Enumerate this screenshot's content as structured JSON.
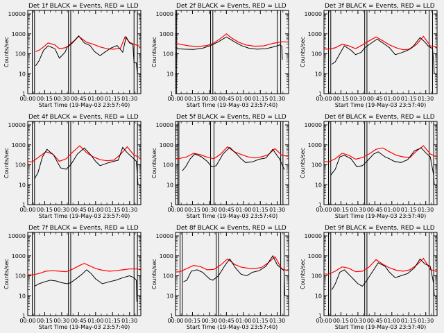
{
  "figure": {
    "xtick_labels": [
      "00:00",
      "00:15",
      "00:30",
      "00:45",
      "01:00",
      "01:15",
      "01:30"
    ],
    "ytick_labels": [
      "1",
      "10",
      "100",
      "1000",
      "10000"
    ],
    "xlabel": "Start Time (19-May-03 23:57:40)",
    "ylabel": "Counts/sec",
    "colors": {
      "events": "#000000",
      "lld": "#ff0000",
      "background": "#f0f0f0"
    }
  },
  "chart_data": [
    {
      "type": "line",
      "title": "Det 1f BLACK = Events, RED = LLD",
      "xlabel": "Start Time (19-May-03 23:57:40)",
      "ylabel": "Counts/sec",
      "yscale": "log",
      "xlim": [
        0,
        100
      ],
      "ylim": [
        1,
        15000
      ],
      "x_unit": "minutes after 23:57:40",
      "vlines": [
        4,
        6,
        36,
        38,
        94,
        97
      ],
      "series": [
        {
          "name": "Events",
          "color": "#000000",
          "x": [
            7,
            10,
            14,
            18,
            24,
            28,
            33,
            35,
            41,
            45,
            50,
            55,
            59,
            64,
            68,
            74,
            79,
            84,
            87,
            90,
            93,
            94,
            96,
            97,
            98
          ],
          "y": [
            25,
            45,
            150,
            250,
            180,
            60,
            120,
            220,
            450,
            800,
            350,
            260,
            130,
            80,
            120,
            200,
            260,
            120,
            700,
            350,
            290,
            35,
            35,
            10,
            10
          ]
        },
        {
          "name": "LLD",
          "color": "#ff0000",
          "x": [
            7,
            10,
            14,
            18,
            24,
            28,
            33,
            38,
            45,
            52,
            58,
            64,
            70,
            76,
            82,
            86,
            90,
            94,
            98,
            103
          ],
          "y": [
            130,
            150,
            220,
            350,
            280,
            180,
            200,
            280,
            750,
            380,
            300,
            220,
            180,
            170,
            190,
            700,
            380,
            300,
            250,
            200
          ]
        }
      ]
    },
    {
      "type": "line",
      "title": "Det 2f BLACK = Events, RED = LLD",
      "xlabel": "Start Time (19-May-03 23:57:40)",
      "ylabel": "Counts/sec",
      "yscale": "log",
      "xlim": [
        0,
        100
      ],
      "ylim": [
        1,
        15000
      ],
      "x_unit": "minutes after 23:57:40",
      "vlines": [
        -1,
        1,
        31,
        33,
        90,
        93
      ],
      "series": [
        {
          "name": "Events",
          "color": "#000000",
          "x": [
            1,
            8,
            16,
            24,
            31,
            38,
            45,
            52,
            58,
            65,
            72,
            80,
            89,
            92,
            94,
            94.5
          ],
          "y": [
            180,
            170,
            165,
            190,
            260,
            400,
            700,
            400,
            260,
            190,
            170,
            180,
            240,
            280,
            240,
            50
          ]
        },
        {
          "name": "LLD",
          "color": "#ff0000",
          "x": [
            -4,
            4,
            12,
            20,
            28,
            34,
            40,
            45,
            50,
            56,
            62,
            70,
            78,
            86,
            94,
            103
          ],
          "y": [
            380,
            300,
            250,
            230,
            260,
            350,
            600,
            1000,
            600,
            380,
            280,
            240,
            250,
            330,
            400,
            380
          ]
        }
      ]
    },
    {
      "type": "line",
      "title": "Det 3f BLACK = Events, RED = LLD",
      "xlabel": "Start Time (19-May-03 23:57:40)",
      "ylabel": "Counts/sec",
      "yscale": "log",
      "xlim": [
        0,
        100
      ],
      "ylim": [
        1,
        15000
      ],
      "x_unit": "minutes after 23:57:40",
      "vlines": [
        4,
        6,
        36,
        38,
        93,
        96
      ],
      "series": [
        {
          "name": "Events",
          "color": "#000000",
          "x": [
            7,
            10,
            14,
            18,
            24,
            28,
            33,
            36,
            42,
            47,
            52,
            58,
            63,
            68,
            74,
            79,
            85,
            89,
            92,
            96,
            97,
            97.5
          ],
          "y": [
            30,
            40,
            100,
            250,
            150,
            90,
            120,
            200,
            350,
            550,
            350,
            200,
            90,
            110,
            150,
            240,
            650,
            400,
            250,
            180,
            35,
            10
          ]
        },
        {
          "name": "LLD",
          "color": "#ff0000",
          "x": [
            -4,
            4,
            10,
            16,
            22,
            28,
            34,
            40,
            46,
            52,
            58,
            64,
            70,
            76,
            82,
            88,
            94,
            103
          ],
          "y": [
            180,
            170,
            200,
            300,
            250,
            180,
            280,
            450,
            700,
            450,
            280,
            200,
            160,
            170,
            300,
            750,
            250,
            200
          ]
        }
      ]
    },
    {
      "type": "line",
      "title": "Det 4f BLACK = Events, RED = LLD",
      "xlabel": "Start Time (19-May-03 23:57:40)",
      "ylabel": "Counts/sec",
      "yscale": "log",
      "xlim": [
        0,
        100
      ],
      "ylim": [
        1,
        15000
      ],
      "x_unit": "minutes after 23:57:40",
      "vlines": [
        4,
        6,
        36,
        38,
        94,
        97
      ],
      "series": [
        {
          "name": "Events",
          "color": "#000000",
          "x": [
            6,
            9,
            13,
            17,
            23,
            29,
            34,
            38,
            44,
            50,
            56,
            60,
            64,
            70,
            76,
            80,
            84,
            88,
            92,
            96,
            97,
            97.5
          ],
          "y": [
            20,
            40,
            250,
            600,
            300,
            70,
            60,
            100,
            350,
            700,
            300,
            150,
            90,
            120,
            150,
            170,
            750,
            400,
            250,
            150,
            30,
            10
          ]
        },
        {
          "name": "LLD",
          "color": "#ff0000",
          "x": [
            -4,
            4,
            10,
            16,
            22,
            28,
            34,
            40,
            46,
            52,
            58,
            64,
            70,
            76,
            82,
            88,
            94,
            103
          ],
          "y": [
            150,
            140,
            250,
            450,
            350,
            150,
            200,
            450,
            900,
            400,
            250,
            180,
            160,
            170,
            330,
            800,
            300,
            200
          ]
        }
      ]
    },
    {
      "type": "line",
      "title": "Det 5f BLACK = Events, RED = LLD",
      "xlabel": "Start Time (19-May-03 23:57:40)",
      "ylabel": "Counts/sec",
      "yscale": "log",
      "xlim": [
        0,
        100
      ],
      "ylim": [
        1,
        15000
      ],
      "x_unit": "minutes after 23:57:40",
      "vlines": [
        2,
        3,
        31,
        34,
        93,
        95
      ],
      "series": [
        {
          "name": "Events",
          "color": "#000000",
          "x": [
            6,
            9,
            13,
            17,
            23,
            28,
            32,
            36,
            42,
            48,
            54,
            58,
            62,
            68,
            74,
            80,
            86,
            90,
            92,
            96,
            96.5
          ],
          "y": [
            50,
            80,
            200,
            350,
            250,
            150,
            80,
            90,
            350,
            750,
            350,
            200,
            130,
            140,
            190,
            220,
            600,
            280,
            200,
            60,
            60
          ]
        },
        {
          "name": "LLD",
          "color": "#ff0000",
          "x": [
            -4,
            4,
            10,
            16,
            22,
            28,
            34,
            40,
            46,
            52,
            58,
            64,
            70,
            76,
            82,
            88,
            94,
            103
          ],
          "y": [
            200,
            210,
            250,
            380,
            320,
            240,
            200,
            350,
            800,
            450,
            330,
            250,
            220,
            250,
            320,
            650,
            300,
            250
          ]
        }
      ]
    },
    {
      "type": "line",
      "title": "Det 6f BLACK = Events, RED = LLD",
      "xlabel": "Start Time (19-May-03 23:57:40)",
      "ylabel": "Counts/sec",
      "yscale": "log",
      "xlim": [
        0,
        100
      ],
      "ylim": [
        1,
        15000
      ],
      "x_unit": "minutes after 23:57:40",
      "vlines": [
        4,
        6,
        36,
        38,
        93,
        97
      ],
      "series": [
        {
          "name": "Events",
          "color": "#000000",
          "x": [
            6,
            10,
            14,
            18,
            24,
            29,
            34,
            38,
            44,
            48,
            54,
            58,
            62,
            68,
            74,
            80,
            86,
            90,
            94,
            97,
            97.5
          ],
          "y": [
            30,
            60,
            250,
            300,
            200,
            80,
            90,
            150,
            350,
            450,
            250,
            200,
            150,
            130,
            180,
            500,
            700,
            400,
            250,
            30,
            10
          ]
        },
        {
          "name": "LLD",
          "color": "#ff0000",
          "x": [
            -4,
            4,
            10,
            16,
            22,
            28,
            34,
            40,
            46,
            52,
            58,
            64,
            70,
            76,
            82,
            88,
            94,
            103
          ],
          "y": [
            150,
            140,
            200,
            380,
            300,
            190,
            230,
            350,
            600,
            700,
            450,
            300,
            250,
            230,
            500,
            900,
            350,
            200
          ]
        }
      ]
    },
    {
      "type": "line",
      "title": "Det 7f BLACK = Events, RED = LLD",
      "xlabel": "Start Time (19-May-03 23:57:40)",
      "ylabel": "Counts/sec",
      "yscale": "log",
      "xlim": [
        0,
        100
      ],
      "ylim": [
        1,
        15000
      ],
      "x_unit": "minutes after 23:57:40",
      "vlines": [
        4,
        6,
        36,
        38,
        94,
        97
      ],
      "series": [
        {
          "name": "Events",
          "color": "#000000",
          "x": [
            6,
            10,
            15,
            20,
            25,
            30,
            35,
            38,
            44,
            48,
            52,
            56,
            60,
            66,
            72,
            78,
            84,
            90,
            94,
            96,
            96.5
          ],
          "y": [
            30,
            40,
            50,
            60,
            55,
            45,
            40,
            45,
            80,
            120,
            200,
            130,
            70,
            40,
            50,
            60,
            80,
            100,
            80,
            60,
            5
          ]
        },
        {
          "name": "LLD",
          "color": "#ff0000",
          "x": [
            -4,
            4,
            10,
            16,
            22,
            28,
            34,
            40,
            46,
            50,
            54,
            60,
            66,
            72,
            78,
            84,
            90,
            96,
            103
          ],
          "y": [
            120,
            110,
            130,
            170,
            180,
            170,
            160,
            220,
            330,
            420,
            330,
            230,
            190,
            170,
            180,
            200,
            220,
            220,
            210
          ]
        }
      ]
    },
    {
      "type": "line",
      "title": "Det 8f BLACK = Events, RED = LLD",
      "xlabel": "Start Time (19-May-03 23:57:40)",
      "ylabel": "Counts/sec",
      "yscale": "log",
      "xlim": [
        0,
        100
      ],
      "ylim": [
        1,
        15000
      ],
      "x_unit": "minutes after 23:57:40",
      "vlines": [
        4,
        6,
        36,
        38,
        93,
        96
      ],
      "series": [
        {
          "name": "Events",
          "color": "#000000",
          "x": [
            7,
            10,
            14,
            19,
            24,
            30,
            33,
            38,
            44,
            48,
            53,
            58,
            63,
            68,
            74,
            80,
            86,
            90,
            93,
            96,
            96.5
          ],
          "y": [
            50,
            60,
            170,
            200,
            150,
            70,
            60,
            100,
            350,
            700,
            250,
            120,
            100,
            150,
            180,
            300,
            1000,
            350,
            250,
            180,
            10
          ]
        },
        {
          "name": "LLD",
          "color": "#ff0000",
          "x": [
            -4,
            4,
            10,
            16,
            22,
            28,
            34,
            40,
            46,
            52,
            58,
            64,
            70,
            76,
            82,
            88,
            94,
            103
          ],
          "y": [
            150,
            160,
            230,
            330,
            290,
            200,
            210,
            350,
            700,
            380,
            270,
            240,
            230,
            260,
            450,
            900,
            220,
            160
          ]
        }
      ]
    },
    {
      "type": "line",
      "title": "Det 9f BLACK = Events, RED = LLD",
      "xlabel": "Start Time (19-May-03 23:57:40)",
      "ylabel": "Counts/sec",
      "yscale": "log",
      "xlim": [
        0,
        100
      ],
      "ylim": [
        1,
        15000
      ],
      "x_unit": "minutes after 23:57:40",
      "vlines": [
        4,
        6,
        36,
        38,
        93,
        97
      ],
      "series": [
        {
          "name": "Events",
          "color": "#000000",
          "x": [
            7,
            10,
            14,
            18,
            24,
            30,
            34,
            38,
            44,
            48,
            54,
            58,
            63,
            68,
            74,
            80,
            85,
            89,
            94,
            97,
            97.5
          ],
          "y": [
            20,
            40,
            150,
            200,
            90,
            40,
            30,
            60,
            200,
            450,
            300,
            150,
            80,
            100,
            130,
            250,
            700,
            400,
            300,
            40,
            10
          ]
        },
        {
          "name": "LLD",
          "color": "#ff0000",
          "x": [
            -4,
            4,
            10,
            16,
            22,
            28,
            34,
            40,
            46,
            52,
            58,
            64,
            70,
            76,
            82,
            88,
            94,
            103
          ],
          "y": [
            130,
            120,
            170,
            280,
            240,
            160,
            170,
            280,
            650,
            380,
            250,
            190,
            170,
            200,
            350,
            750,
            210,
            140
          ]
        }
      ]
    }
  ]
}
